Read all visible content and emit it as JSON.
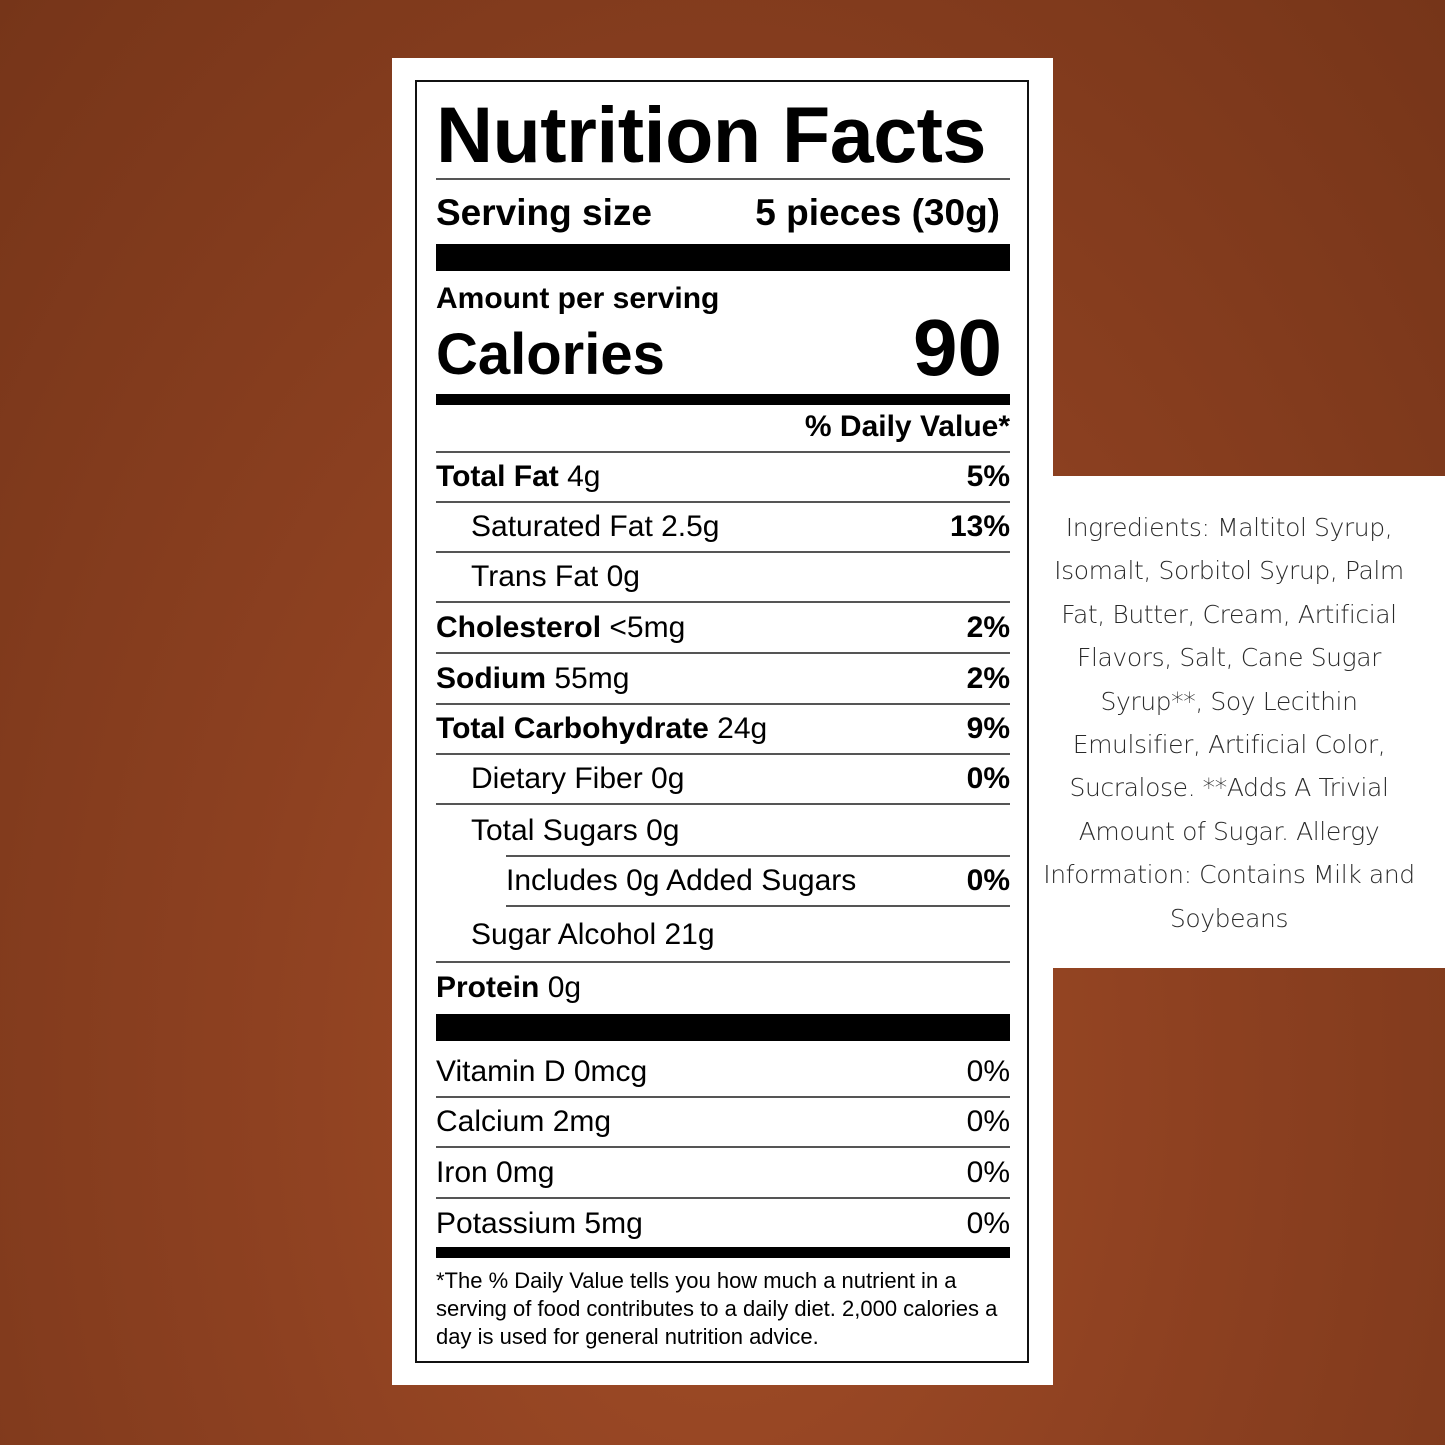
{
  "label": {
    "title": "Nutrition Facts",
    "serving_size_label": "Serving size",
    "serving_size_value": "5 pieces (30g)",
    "amount_per_serving": "Amount per serving",
    "calories_label": "Calories",
    "calories_value": "90",
    "daily_value_header": "% Daily Value*",
    "nutrients": [
      {
        "name": "Total Fat",
        "amount": "4g",
        "dv": "5%"
      },
      {
        "name": "Saturated Fat 2.5g",
        "amount": "",
        "dv": "13%"
      },
      {
        "name": "Trans Fat 0g",
        "amount": "",
        "dv": ""
      },
      {
        "name": "Cholesterol",
        "amount": "<5mg",
        "dv": "2%"
      },
      {
        "name": "Sodium",
        "amount": "55mg",
        "dv": "2%"
      },
      {
        "name": "Total Carbohydrate",
        "amount": "24g",
        "dv": "9%"
      },
      {
        "name": "Dietary Fiber 0g",
        "amount": "",
        "dv": "0%"
      },
      {
        "name": "Total Sugars 0g",
        "amount": "",
        "dv": ""
      },
      {
        "name": "Includes 0g Added Sugars",
        "amount": "",
        "dv": "0%"
      },
      {
        "name": "Sugar Alcohol 21g",
        "amount": "",
        "dv": ""
      },
      {
        "name": "Protein",
        "amount": "0g",
        "dv": ""
      }
    ],
    "vitamins": [
      {
        "name": "Vitamin D 0mcg",
        "dv": "0%"
      },
      {
        "name": "Calcium 2mg",
        "dv": "0%"
      },
      {
        "name": "Iron 0mg",
        "dv": "0%"
      },
      {
        "name": "Potassium 5mg",
        "dv": "0%"
      }
    ],
    "footnote": "*The % Daily Value tells you how much a nutrient in a serving of food contributes to a daily diet. 2,000 calories a day is used for general nutrition advice."
  },
  "ingredients": "Ingredients: Maltitol Syrup, Isomalt, Sorbitol Syrup, Palm Fat, Butter, Cream, Artificial Flavors, Salt, Cane Sugar Syrup**, Soy Lecithin Emulsifier, Artificial Color, Sucralose. **Adds A Trivial Amount of Sugar. Allergy Information: Contains Milk and Soybeans",
  "colors": {
    "background": "#8e4121",
    "panel": "#ffffff",
    "text": "#000000"
  }
}
